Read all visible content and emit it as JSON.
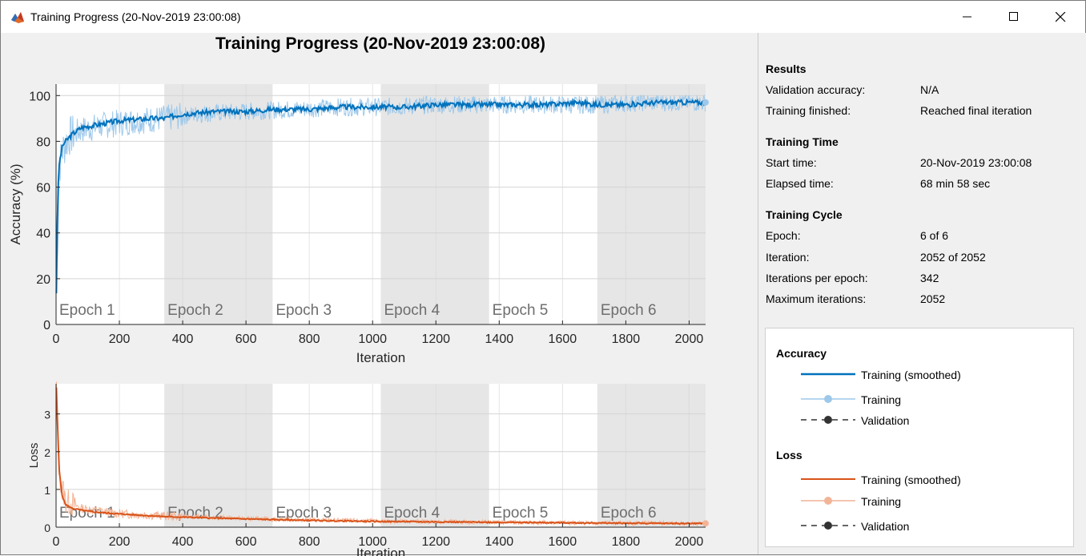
{
  "window": {
    "title": "Training Progress (20-Nov-2019 23:00:08)",
    "buttons": [
      "minimize",
      "maximize",
      "close"
    ]
  },
  "figure": {
    "title": "Training Progress (20-Nov-2019 23:00:08)",
    "epoch_labels": [
      "Epoch 1",
      "Epoch 2",
      "Epoch 3",
      "Epoch 4",
      "Epoch 5",
      "Epoch 6"
    ]
  },
  "info": {
    "results": {
      "heading": "Results",
      "rows": [
        {
          "label": "Validation accuracy:",
          "value": "N/A"
        },
        {
          "label": "Training finished:",
          "value": "Reached final iteration"
        }
      ]
    },
    "time": {
      "heading": "Training Time",
      "rows": [
        {
          "label": "Start time:",
          "value": "20-Nov-2019 23:00:08"
        },
        {
          "label": "Elapsed time:",
          "value": "68 min 58 sec"
        }
      ]
    },
    "cycle": {
      "heading": "Training Cycle",
      "rows": [
        {
          "label": "Epoch:",
          "value": "6 of 6"
        },
        {
          "label": "Iteration:",
          "value": "2052 of 2052"
        },
        {
          "label": "Iterations per epoch:",
          "value": "342"
        },
        {
          "label": "Maximum iterations:",
          "value": "2052"
        }
      ]
    }
  },
  "legend": {
    "accuracy": {
      "heading": "Accuracy",
      "entries": [
        "Training (smoothed)",
        "Training",
        "Validation"
      ]
    },
    "loss": {
      "heading": "Loss",
      "entries": [
        "Training (smoothed)",
        "Training",
        "Validation"
      ]
    }
  },
  "colors": {
    "accuracy_smoothed": "#0072bd",
    "accuracy_raw": "#9dc8ea",
    "loss_smoothed": "#d95319",
    "loss_raw": "#f2b497",
    "validation": "#333333",
    "epoch_shade": "#e6e6e6"
  },
  "chart_data": [
    {
      "type": "line",
      "title": "Training Progress (20-Nov-2019 23:00:08)",
      "xlabel": "Iteration",
      "ylabel": "Accuracy (%)",
      "xlim": [
        0,
        2052
      ],
      "ylim": [
        0,
        105
      ],
      "xticks": [
        0,
        200,
        400,
        600,
        800,
        1000,
        1200,
        1400,
        1600,
        1800,
        2000
      ],
      "yticks": [
        0,
        20,
        40,
        60,
        80,
        100
      ],
      "epoch_boundaries": [
        0,
        342,
        684,
        1026,
        1368,
        1710,
        2052
      ],
      "grid": true,
      "legend": "right panel",
      "series": [
        {
          "name": "Training (smoothed)",
          "x": [
            1,
            5,
            10,
            20,
            30,
            50,
            80,
            120,
            200,
            300,
            342,
            400,
            500,
            600,
            684,
            800,
            900,
            1026,
            1100,
            1200,
            1300,
            1368,
            1450,
            1550,
            1650,
            1710,
            1800,
            1900,
            2000,
            2052
          ],
          "values": [
            14,
            55,
            70,
            78,
            80,
            83,
            86,
            87,
            89,
            90,
            90,
            92,
            93,
            93,
            94,
            94,
            95,
            95,
            95,
            96,
            96,
            96,
            96,
            96,
            97,
            96,
            96,
            97,
            97,
            97
          ]
        },
        {
          "name": "Training",
          "x": [
            1,
            10,
            20,
            40,
            80,
            150,
            250,
            342,
            450,
            600,
            750,
            900,
            1026,
            1200,
            1368,
            1500,
            1710,
            1850,
            2052
          ],
          "values": [
            14,
            68,
            76,
            82,
            85,
            87,
            89,
            90,
            92,
            93,
            94,
            95,
            95,
            96,
            96,
            96,
            96,
            97,
            97
          ]
        }
      ]
    },
    {
      "type": "line",
      "xlabel": "Iteration",
      "ylabel": "Loss",
      "xlim": [
        0,
        2052
      ],
      "ylim": [
        0,
        3.8
      ],
      "xticks": [
        0,
        200,
        400,
        600,
        800,
        1000,
        1200,
        1400,
        1600,
        1800,
        2000
      ],
      "yticks": [
        0,
        1,
        2,
        3
      ],
      "epoch_boundaries": [
        0,
        342,
        684,
        1026,
        1368,
        1710,
        2052
      ],
      "grid": true,
      "series": [
        {
          "name": "Training (smoothed)",
          "x": [
            1,
            5,
            10,
            20,
            30,
            50,
            80,
            120,
            200,
            342,
            500,
            684,
            850,
            1026,
            1200,
            1368,
            1550,
            1710,
            1900,
            2052
          ],
          "values": [
            3.7,
            2.6,
            1.5,
            0.8,
            0.6,
            0.5,
            0.45,
            0.4,
            0.35,
            0.28,
            0.24,
            0.2,
            0.17,
            0.15,
            0.14,
            0.13,
            0.12,
            0.11,
            0.1,
            0.1
          ]
        },
        {
          "name": "Training",
          "x": [
            1,
            10,
            30,
            80,
            200,
            342,
            684,
            1026,
            1368,
            1710,
            2052
          ],
          "values": [
            3.7,
            1.4,
            0.7,
            0.5,
            0.36,
            0.3,
            0.21,
            0.16,
            0.13,
            0.11,
            0.1
          ]
        }
      ]
    }
  ]
}
